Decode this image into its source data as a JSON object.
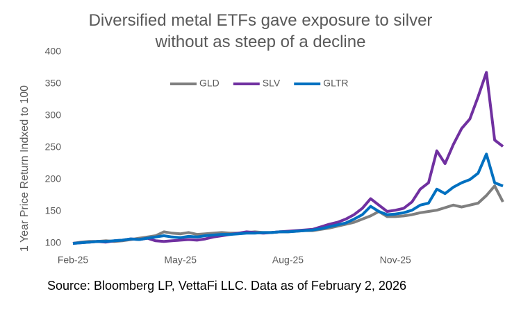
{
  "chart_data": {
    "type": "line",
    "title": "Diversified metal ETFs gave exposure to silver without as steep of a decline",
    "y_label": "1 Year Price  Return Indxed to 100",
    "source": "Source: Bloomberg LP, VettaFi LLC. Data as of February 2, 2026",
    "categories": [
      "Feb-25",
      null,
      null,
      null,
      null,
      null,
      null,
      null,
      null,
      null,
      null,
      null,
      null,
      "May-25",
      null,
      null,
      null,
      null,
      null,
      null,
      null,
      null,
      null,
      null,
      null,
      null,
      "Aug-25",
      null,
      null,
      null,
      null,
      null,
      null,
      null,
      null,
      null,
      null,
      null,
      null,
      "Nov-25",
      null,
      null,
      null,
      null,
      null,
      null,
      null,
      null,
      null,
      null,
      null,
      null,
      null
    ],
    "series": [
      {
        "name": "GLD",
        "color": "#7f7f7f",
        "values": [
          100,
          102,
          103,
          103,
          104,
          103,
          104,
          106,
          108,
          110,
          112,
          118,
          116,
          115,
          117,
          114,
          115,
          116,
          117,
          116,
          116,
          117,
          118,
          117,
          117,
          118,
          118,
          119,
          120,
          120,
          122,
          124,
          127,
          130,
          133,
          138,
          143,
          150,
          142,
          142,
          143,
          145,
          148,
          150,
          152,
          156,
          160,
          157,
          160,
          163,
          175,
          190,
          165
        ]
      },
      {
        "name": "SLV",
        "color": "#7030a0",
        "values": [
          100,
          101,
          102,
          103,
          102,
          104,
          105,
          107,
          106,
          108,
          104,
          103,
          104,
          105,
          106,
          105,
          107,
          110,
          112,
          114,
          116,
          118,
          117,
          116,
          117,
          118,
          119,
          120,
          121,
          122,
          126,
          130,
          133,
          138,
          145,
          155,
          170,
          160,
          150,
          152,
          155,
          165,
          185,
          195,
          245,
          225,
          255,
          280,
          295,
          330,
          368,
          262,
          252
        ]
      },
      {
        "name": "GLTR",
        "color": "#0070c0",
        "values": [
          100,
          101,
          102,
          103,
          103,
          104,
          105,
          107,
          106,
          108,
          110,
          112,
          110,
          109,
          111,
          110,
          112,
          113,
          114,
          114,
          115,
          116,
          116,
          117,
          117,
          118,
          118,
          119,
          120,
          121,
          123,
          126,
          129,
          132,
          138,
          145,
          158,
          150,
          145,
          146,
          148,
          152,
          160,
          163,
          185,
          178,
          188,
          195,
          200,
          210,
          240,
          195,
          190
        ]
      }
    ],
    "ylim": [
      100,
      400
    ],
    "yticks": [
      100,
      150,
      200,
      250,
      300,
      350,
      400
    ],
    "grid": false,
    "legend": "top"
  }
}
